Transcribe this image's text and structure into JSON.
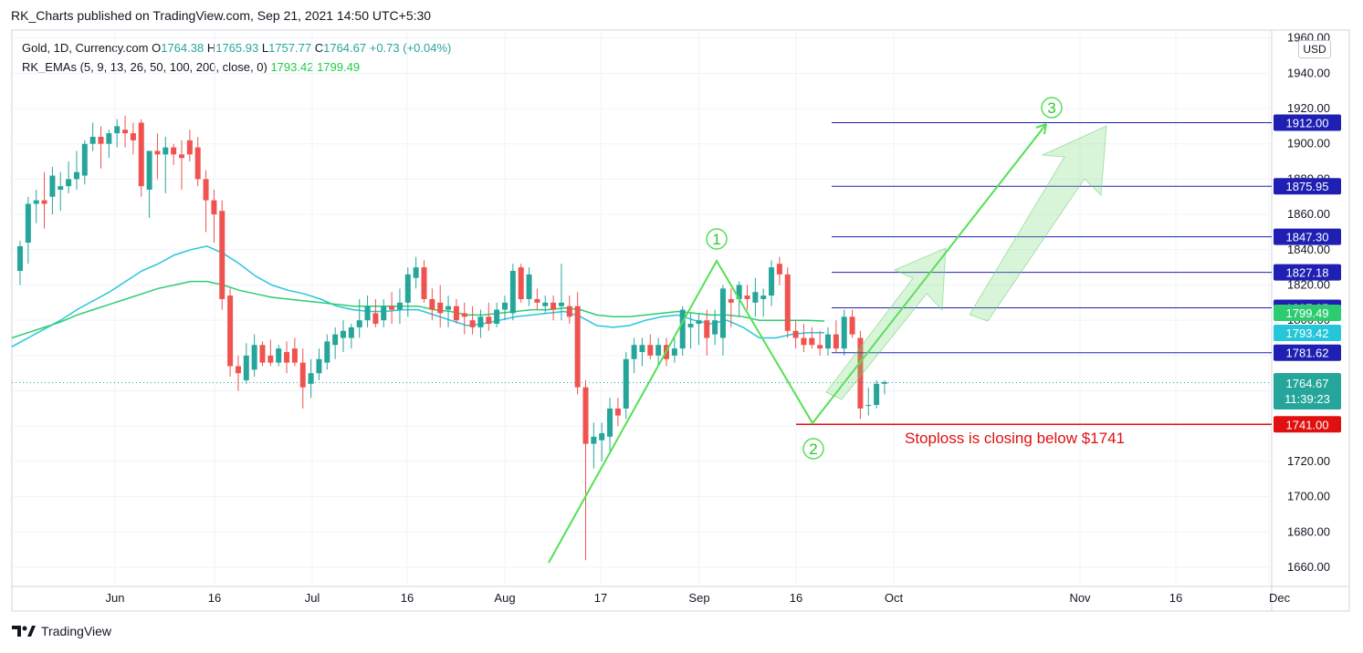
{
  "header": {
    "caption": "RK_Charts published on TradingView.com, Sep 21, 2021 14:50 UTC+5:30"
  },
  "legend": {
    "symbol_line": "Gold, 1D, Currency.com",
    "o_label": "O",
    "o_value": "1764.38",
    "h_label": "H",
    "h_value": "1765.93",
    "l_label": "L",
    "l_value": "1757.77",
    "c_label": "C",
    "c_value": "1764.67",
    "change": "+0.73 (+0.04%)",
    "indicator_line": "RK_EMAs (5, 9, 13, 26, 50, 100, 200, close, 0)",
    "ema_value_1": "1793.42",
    "ema_value_2": "1799.49"
  },
  "currency_button": "USD",
  "footer": {
    "brand": "TradingView"
  },
  "colors": {
    "up": "#26a69a",
    "down": "#ef5350",
    "ema_fast": "#26c6da",
    "ema_slow": "#2ecc71",
    "target_line": "#1f1fb4",
    "stop_line": "#e01010",
    "wave": "#55e055",
    "annotation_text": "#e01010"
  },
  "chart_data": {
    "type": "candlestick",
    "title": "Gold, 1D, Currency.com",
    "y_axis_ticks": [
      "1660.00",
      "1680.00",
      "1700.00",
      "1720.00",
      "1740.00",
      "1760.00",
      "1780.00",
      "1800.00",
      "1820.00",
      "1840.00",
      "1860.00",
      "1880.00",
      "1900.00",
      "1920.00",
      "1940.00",
      "1960.00"
    ],
    "x_axis_ticks": [
      "Jun",
      "16",
      "Jul",
      "16",
      "Aug",
      "17",
      "Sep",
      "16",
      "Oct",
      "Nov",
      "16",
      "Dec"
    ],
    "ylim": [
      1656,
      1966
    ],
    "grid": true,
    "candles": [
      {
        "o": 1828,
        "h": 1845,
        "l": 1820,
        "c": 1842
      },
      {
        "o": 1844,
        "h": 1870,
        "l": 1832,
        "c": 1866
      },
      {
        "o": 1866,
        "h": 1874,
        "l": 1855,
        "c": 1868
      },
      {
        "o": 1868,
        "h": 1884,
        "l": 1852,
        "c": 1866
      },
      {
        "o": 1870,
        "h": 1887,
        "l": 1860,
        "c": 1882
      },
      {
        "o": 1874,
        "h": 1884,
        "l": 1862,
        "c": 1876
      },
      {
        "o": 1876,
        "h": 1890,
        "l": 1872,
        "c": 1880
      },
      {
        "o": 1880,
        "h": 1896,
        "l": 1874,
        "c": 1884
      },
      {
        "o": 1882,
        "h": 1902,
        "l": 1877,
        "c": 1900
      },
      {
        "o": 1900,
        "h": 1912,
        "l": 1896,
        "c": 1904
      },
      {
        "o": 1904,
        "h": 1910,
        "l": 1886,
        "c": 1900
      },
      {
        "o": 1900,
        "h": 1908,
        "l": 1892,
        "c": 1906
      },
      {
        "o": 1906,
        "h": 1914,
        "l": 1898,
        "c": 1910
      },
      {
        "o": 1908,
        "h": 1916,
        "l": 1898,
        "c": 1906
      },
      {
        "o": 1906,
        "h": 1912,
        "l": 1894,
        "c": 1902
      },
      {
        "o": 1912,
        "h": 1914,
        "l": 1870,
        "c": 1876
      },
      {
        "o": 1874,
        "h": 1896,
        "l": 1858,
        "c": 1896
      },
      {
        "o": 1896,
        "h": 1906,
        "l": 1880,
        "c": 1894
      },
      {
        "o": 1894,
        "h": 1904,
        "l": 1872,
        "c": 1898
      },
      {
        "o": 1898,
        "h": 1900,
        "l": 1888,
        "c": 1894
      },
      {
        "o": 1894,
        "h": 1902,
        "l": 1874,
        "c": 1892
      },
      {
        "o": 1902,
        "h": 1908,
        "l": 1890,
        "c": 1894
      },
      {
        "o": 1898,
        "h": 1904,
        "l": 1876,
        "c": 1880
      },
      {
        "o": 1880,
        "h": 1885,
        "l": 1850,
        "c": 1868
      },
      {
        "o": 1868,
        "h": 1874,
        "l": 1844,
        "c": 1860
      },
      {
        "o": 1862,
        "h": 1868,
        "l": 1806,
        "c": 1812
      },
      {
        "o": 1814,
        "h": 1818,
        "l": 1768,
        "c": 1774
      },
      {
        "o": 1774,
        "h": 1780,
        "l": 1760,
        "c": 1770
      },
      {
        "o": 1766,
        "h": 1787,
        "l": 1764,
        "c": 1780
      },
      {
        "o": 1772,
        "h": 1792,
        "l": 1768,
        "c": 1786
      },
      {
        "o": 1786,
        "h": 1788,
        "l": 1774,
        "c": 1776
      },
      {
        "o": 1780,
        "h": 1789,
        "l": 1774,
        "c": 1776
      },
      {
        "o": 1776,
        "h": 1786,
        "l": 1774,
        "c": 1784
      },
      {
        "o": 1782,
        "h": 1788,
        "l": 1770,
        "c": 1776
      },
      {
        "o": 1784,
        "h": 1790,
        "l": 1774,
        "c": 1776
      },
      {
        "o": 1776,
        "h": 1784,
        "l": 1750,
        "c": 1762
      },
      {
        "o": 1764,
        "h": 1778,
        "l": 1756,
        "c": 1770
      },
      {
        "o": 1770,
        "h": 1784,
        "l": 1766,
        "c": 1778
      },
      {
        "o": 1776,
        "h": 1792,
        "l": 1772,
        "c": 1788
      },
      {
        "o": 1786,
        "h": 1796,
        "l": 1778,
        "c": 1792
      },
      {
        "o": 1790,
        "h": 1800,
        "l": 1782,
        "c": 1794
      },
      {
        "o": 1790,
        "h": 1798,
        "l": 1784,
        "c": 1796
      },
      {
        "o": 1796,
        "h": 1812,
        "l": 1790,
        "c": 1800
      },
      {
        "o": 1800,
        "h": 1814,
        "l": 1796,
        "c": 1808
      },
      {
        "o": 1804,
        "h": 1812,
        "l": 1796,
        "c": 1798
      },
      {
        "o": 1800,
        "h": 1812,
        "l": 1796,
        "c": 1808
      },
      {
        "o": 1808,
        "h": 1816,
        "l": 1798,
        "c": 1806
      },
      {
        "o": 1806,
        "h": 1818,
        "l": 1798,
        "c": 1810
      },
      {
        "o": 1810,
        "h": 1830,
        "l": 1802,
        "c": 1826
      },
      {
        "o": 1824,
        "h": 1836,
        "l": 1818,
        "c": 1830
      },
      {
        "o": 1830,
        "h": 1834,
        "l": 1810,
        "c": 1812
      },
      {
        "o": 1812,
        "h": 1818,
        "l": 1800,
        "c": 1806
      },
      {
        "o": 1810,
        "h": 1820,
        "l": 1796,
        "c": 1804
      },
      {
        "o": 1806,
        "h": 1814,
        "l": 1796,
        "c": 1808
      },
      {
        "o": 1808,
        "h": 1812,
        "l": 1798,
        "c": 1800
      },
      {
        "o": 1804,
        "h": 1810,
        "l": 1792,
        "c": 1802
      },
      {
        "o": 1800,
        "h": 1808,
        "l": 1792,
        "c": 1796
      },
      {
        "o": 1796,
        "h": 1806,
        "l": 1790,
        "c": 1802
      },
      {
        "o": 1802,
        "h": 1810,
        "l": 1794,
        "c": 1798
      },
      {
        "o": 1798,
        "h": 1810,
        "l": 1796,
        "c": 1806
      },
      {
        "o": 1806,
        "h": 1814,
        "l": 1800,
        "c": 1810
      },
      {
        "o": 1804,
        "h": 1832,
        "l": 1800,
        "c": 1828
      },
      {
        "o": 1830,
        "h": 1832,
        "l": 1810,
        "c": 1812
      },
      {
        "o": 1812,
        "h": 1830,
        "l": 1808,
        "c": 1826
      },
      {
        "o": 1812,
        "h": 1818,
        "l": 1806,
        "c": 1810
      },
      {
        "o": 1808,
        "h": 1814,
        "l": 1804,
        "c": 1810
      },
      {
        "o": 1810,
        "h": 1814,
        "l": 1800,
        "c": 1806
      },
      {
        "o": 1808,
        "h": 1832,
        "l": 1800,
        "c": 1810
      },
      {
        "o": 1808,
        "h": 1814,
        "l": 1798,
        "c": 1802
      },
      {
        "o": 1808,
        "h": 1816,
        "l": 1758,
        "c": 1762
      },
      {
        "o": 1762,
        "h": 1766,
        "l": 1664,
        "c": 1730
      },
      {
        "o": 1730,
        "h": 1742,
        "l": 1716,
        "c": 1734
      },
      {
        "o": 1732,
        "h": 1742,
        "l": 1720,
        "c": 1736
      },
      {
        "o": 1734,
        "h": 1756,
        "l": 1726,
        "c": 1750
      },
      {
        "o": 1750,
        "h": 1756,
        "l": 1740,
        "c": 1746
      },
      {
        "o": 1750,
        "h": 1782,
        "l": 1744,
        "c": 1778
      },
      {
        "o": 1778,
        "h": 1790,
        "l": 1770,
        "c": 1786
      },
      {
        "o": 1782,
        "h": 1790,
        "l": 1774,
        "c": 1786
      },
      {
        "o": 1786,
        "h": 1792,
        "l": 1778,
        "c": 1780
      },
      {
        "o": 1780,
        "h": 1790,
        "l": 1774,
        "c": 1786
      },
      {
        "o": 1786,
        "h": 1790,
        "l": 1774,
        "c": 1778
      },
      {
        "o": 1780,
        "h": 1790,
        "l": 1776,
        "c": 1784
      },
      {
        "o": 1784,
        "h": 1808,
        "l": 1780,
        "c": 1806
      },
      {
        "o": 1796,
        "h": 1804,
        "l": 1784,
        "c": 1798
      },
      {
        "o": 1798,
        "h": 1804,
        "l": 1786,
        "c": 1800
      },
      {
        "o": 1800,
        "h": 1806,
        "l": 1780,
        "c": 1790
      },
      {
        "o": 1792,
        "h": 1806,
        "l": 1786,
        "c": 1800
      },
      {
        "o": 1790,
        "h": 1820,
        "l": 1780,
        "c": 1818
      },
      {
        "o": 1812,
        "h": 1818,
        "l": 1796,
        "c": 1810
      },
      {
        "o": 1812,
        "h": 1822,
        "l": 1802,
        "c": 1820
      },
      {
        "o": 1814,
        "h": 1820,
        "l": 1806,
        "c": 1812
      },
      {
        "o": 1810,
        "h": 1824,
        "l": 1802,
        "c": 1816
      },
      {
        "o": 1812,
        "h": 1818,
        "l": 1802,
        "c": 1814
      },
      {
        "o": 1814,
        "h": 1834,
        "l": 1808,
        "c": 1830
      },
      {
        "o": 1832,
        "h": 1836,
        "l": 1820,
        "c": 1826
      },
      {
        "o": 1826,
        "h": 1830,
        "l": 1790,
        "c": 1794
      },
      {
        "o": 1794,
        "h": 1800,
        "l": 1784,
        "c": 1790
      },
      {
        "o": 1790,
        "h": 1798,
        "l": 1782,
        "c": 1786
      },
      {
        "o": 1790,
        "h": 1796,
        "l": 1784,
        "c": 1786
      },
      {
        "o": 1786,
        "h": 1794,
        "l": 1780,
        "c": 1784
      },
      {
        "o": 1784,
        "h": 1796,
        "l": 1780,
        "c": 1792
      },
      {
        "o": 1792,
        "h": 1800,
        "l": 1782,
        "c": 1784
      },
      {
        "o": 1784,
        "h": 1806,
        "l": 1780,
        "c": 1802
      },
      {
        "o": 1802,
        "h": 1806,
        "l": 1790,
        "c": 1792
      },
      {
        "o": 1790,
        "h": 1794,
        "l": 1744,
        "c": 1750
      },
      {
        "o": 1752,
        "h": 1762,
        "l": 1746,
        "c": 1752
      },
      {
        "o": 1752,
        "h": 1766,
        "l": 1750,
        "c": 1764
      },
      {
        "o": 1764,
        "h": 1766,
        "l": 1758,
        "c": 1765
      }
    ],
    "ema_series": [
      {
        "value": "1793.42",
        "values": [
          1785,
          1790,
          1795,
          1800,
          1806,
          1811,
          1816,
          1822,
          1828,
          1832,
          1837,
          1840,
          1842,
          1838,
          1832,
          1825,
          1820,
          1817,
          1815,
          1812,
          1808,
          1806,
          1805,
          1805,
          1806,
          1806,
          1803,
          1800,
          1797,
          1798,
          1800,
          1802,
          1803,
          1804,
          1805,
          1802,
          1797,
          1796,
          1797,
          1800,
          1802,
          1803,
          1800,
          1798,
          1800,
          1796,
          1790,
          1790,
          1792,
          1793,
          1793
        ]
      },
      {
        "value": "1799.49",
        "values": [
          1790,
          1793,
          1796,
          1799,
          1803,
          1806,
          1809,
          1812,
          1815,
          1818,
          1820,
          1822,
          1822,
          1820,
          1817,
          1815,
          1813,
          1812,
          1811,
          1810,
          1809,
          1808,
          1808,
          1808,
          1808,
          1808,
          1806,
          1805,
          1803,
          1803,
          1804,
          1805,
          1806,
          1806,
          1807,
          1806,
          1803,
          1802,
          1802,
          1803,
          1804,
          1805,
          1804,
          1803,
          1803,
          1802,
          1800,
          1800,
          1800,
          1800,
          1799.5
        ]
      }
    ],
    "target_levels": [
      "1912.00",
      "1875.95",
      "1847.30",
      "1827.18",
      "1807.05",
      "1781.62"
    ],
    "stoploss_level": "1741.00",
    "current_price": "1764.67",
    "countdown": "11:39:23",
    "ema_axis_labels": [
      "1799.49",
      "1793.42"
    ],
    "wave_labels": [
      "1",
      "2",
      "3"
    ],
    "annotation": "Stoploss is closing below $1741"
  }
}
